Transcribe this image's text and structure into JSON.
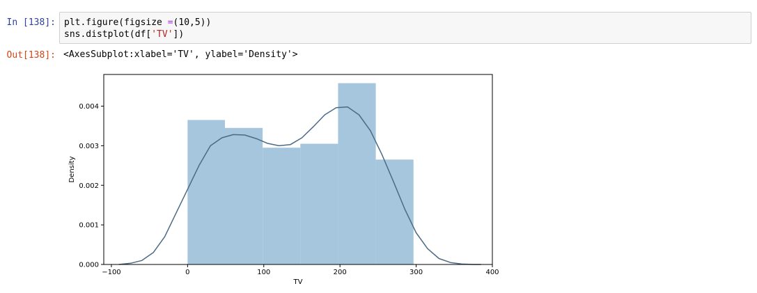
{
  "cell": {
    "in_prompt": "In [138]:",
    "out_prompt": "Out[138]:",
    "code_line1_a": "plt.figure(figsize ",
    "code_line1_op": "=",
    "code_line1_b": "(10,5))",
    "code_line2_a": "sns.distplot(df[",
    "code_line2_str": "'TV'",
    "code_line2_b": "])",
    "output_text": "<AxesSubplot:xlabel='TV', ylabel='Density'>"
  },
  "colors": {
    "bar_fill": "#a6c6de",
    "kde_line": "#4c6a86",
    "prompt_in": "#303f9f",
    "prompt_out": "#d84315"
  },
  "chart_data": {
    "type": "bar",
    "title": "",
    "xlabel": "TV",
    "ylabel": "Density",
    "xlim": [
      -110,
      400
    ],
    "ylim": [
      0,
      0.0048
    ],
    "xticks": [
      -100,
      0,
      100,
      200,
      300,
      400
    ],
    "xtick_labels": [
      "−100",
      "0",
      "100",
      "200",
      "300",
      "400"
    ],
    "yticks": [
      0,
      0.001,
      0.002,
      0.003,
      0.004
    ],
    "ytick_labels": [
      "0.000",
      "0.001",
      "0.002",
      "0.003",
      "0.004"
    ],
    "bins": [
      {
        "x0": 0,
        "x1": 49,
        "density": 0.00365
      },
      {
        "x0": 49,
        "x1": 98.5,
        "density": 0.00345
      },
      {
        "x0": 98.5,
        "x1": 148,
        "density": 0.00295
      },
      {
        "x0": 148,
        "x1": 197.5,
        "density": 0.00305
      },
      {
        "x0": 197.5,
        "x1": 247,
        "density": 0.00458
      },
      {
        "x0": 247,
        "x1": 296.5,
        "density": 0.00265
      }
    ],
    "kde": {
      "x": [
        -90,
        -75,
        -60,
        -45,
        -30,
        -15,
        0,
        15,
        30,
        45,
        60,
        75,
        90,
        105,
        120,
        135,
        150,
        165,
        180,
        195,
        210,
        225,
        240,
        255,
        270,
        285,
        300,
        315,
        330,
        345,
        360,
        375,
        385
      ],
      "y": [
        0.0,
        3e-05,
        0.0001,
        0.0003,
        0.0007,
        0.0013,
        0.0019,
        0.0025,
        0.003,
        0.0032,
        0.00328,
        0.00327,
        0.00318,
        0.00306,
        0.003,
        0.00303,
        0.0032,
        0.00348,
        0.00378,
        0.00396,
        0.00398,
        0.00378,
        0.00338,
        0.00278,
        0.0021,
        0.0014,
        0.0008,
        0.0004,
        0.00015,
        5e-05,
        1e-05,
        0.0,
        0.0
      ]
    }
  }
}
